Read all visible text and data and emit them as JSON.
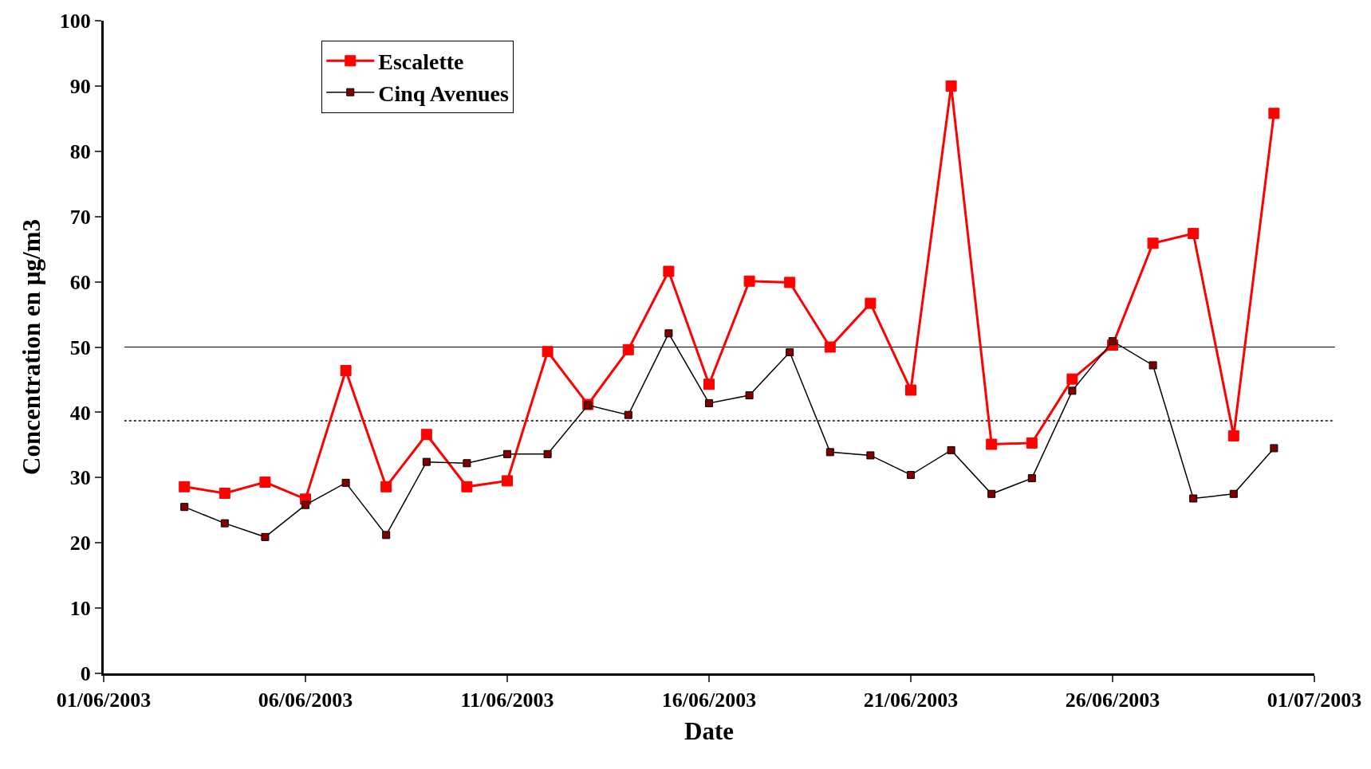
{
  "chart_data": {
    "type": "line",
    "xlabel": "Date",
    "ylabel": "Concentration en µg/m3",
    "x": [
      "2003-06-03",
      "2003-06-04",
      "2003-06-05",
      "2003-06-06",
      "2003-06-07",
      "2003-06-08",
      "2003-06-09",
      "2003-06-10",
      "2003-06-11",
      "2003-06-12",
      "2003-06-13",
      "2003-06-14",
      "2003-06-15",
      "2003-06-16",
      "2003-06-17",
      "2003-06-18",
      "2003-06-19",
      "2003-06-20",
      "2003-06-21",
      "2003-06-22",
      "2003-06-23",
      "2003-06-24",
      "2003-06-25",
      "2003-06-26",
      "2003-06-27",
      "2003-06-28",
      "2003-06-29",
      "2003-06-30"
    ],
    "series": [
      {
        "name": "Escalette",
        "color": "#ff0000",
        "values": [
          28.6,
          27.6,
          29.3,
          26.7,
          46.4,
          28.6,
          36.6,
          28.6,
          29.5,
          49.3,
          41.2,
          49.6,
          61.6,
          44.3,
          60.1,
          59.9,
          50.0,
          56.7,
          43.4,
          90.0,
          35.1,
          35.3,
          45.1,
          50.3,
          65.9,
          67.4,
          36.4,
          85.8
        ]
      },
      {
        "name": "Cinq Avenues",
        "color": "#800000",
        "values": [
          25.5,
          23.0,
          20.9,
          25.8,
          29.2,
          21.2,
          32.4,
          32.2,
          33.6,
          33.6,
          41.1,
          39.6,
          52.1,
          41.4,
          42.6,
          49.2,
          33.9,
          33.4,
          30.4,
          34.2,
          27.5,
          29.9,
          43.3,
          50.9,
          47.2,
          26.8,
          27.5,
          34.5
        ]
      }
    ],
    "xlim": [
      "2003-06-01",
      "2003-07-01"
    ],
    "xticks": [
      {
        "value": "2003-06-01",
        "label": "01/06/2003"
      },
      {
        "value": "2003-06-06",
        "label": "06/06/2003"
      },
      {
        "value": "2003-06-11",
        "label": "11/06/2003"
      },
      {
        "value": "2003-06-16",
        "label": "16/06/2003"
      },
      {
        "value": "2003-06-21",
        "label": "21/06/2003"
      },
      {
        "value": "2003-06-26",
        "label": "26/06/2003"
      },
      {
        "value": "2003-07-01",
        "label": "01/07/2003"
      }
    ],
    "ylim": [
      0,
      100
    ],
    "yticks": [
      0,
      10,
      20,
      30,
      40,
      50,
      60,
      70,
      80,
      90,
      100
    ],
    "ref_lines": [
      {
        "axis": "y",
        "value": 50,
        "label": null,
        "color": "#000000",
        "line_style": "solid"
      },
      {
        "axis": "y",
        "value": 38.7,
        "label": null,
        "color": "#000000",
        "line_style": "dotted"
      }
    ],
    "grid": false,
    "legend": "top left",
    "marker": "square",
    "line_style": "solid"
  }
}
